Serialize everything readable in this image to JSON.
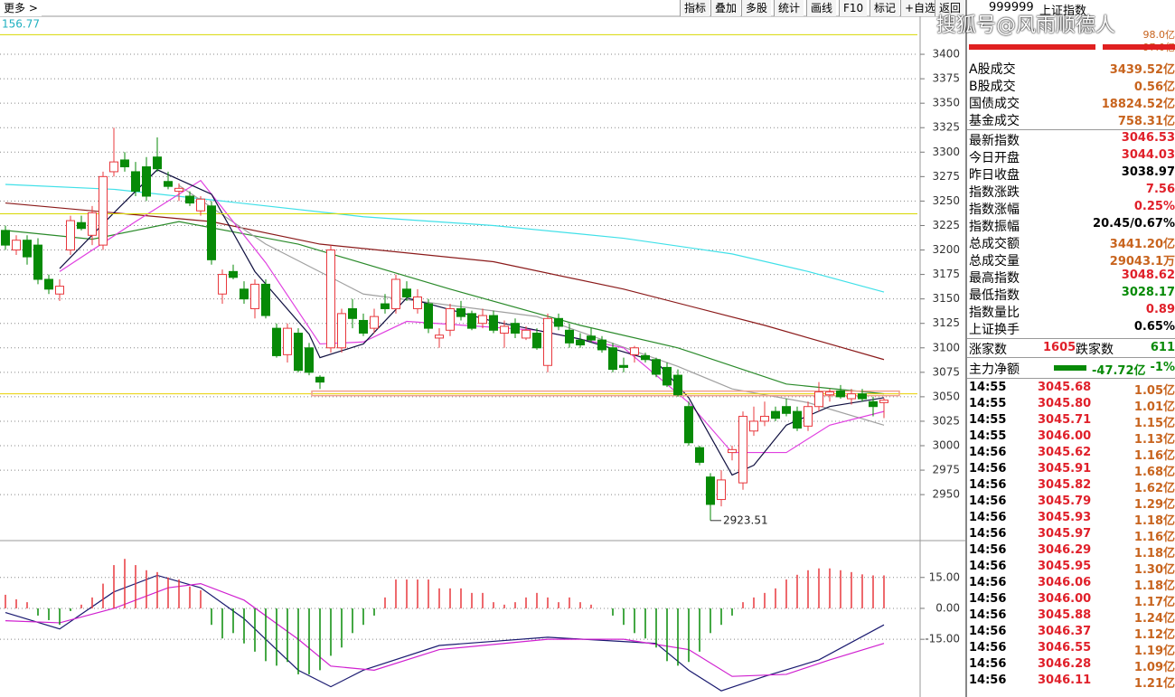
{
  "toolbar": {
    "more": "更多",
    "buttons": [
      "指标",
      "叠加",
      "多股",
      "统计",
      "画线",
      "F10",
      "标记",
      "+自选",
      "返回"
    ]
  },
  "chart_data": [
    {
      "type": "candlestick",
      "top_label": "156.77",
      "up_color": "#e8383d",
      "down_color": "#078a07",
      "ylim": [
        2903,
        3437
      ],
      "yticks": [
        2950,
        2975,
        3000,
        3025,
        3050,
        3075,
        3100,
        3125,
        3150,
        3175,
        3200,
        3225,
        3250,
        3275,
        3300,
        3325,
        3350,
        3375,
        3400
      ],
      "grid": true,
      "open": [
        3220,
        3200,
        3210,
        3205,
        3170,
        3155,
        3200,
        3228,
        3215,
        3205,
        3280,
        3292,
        3280,
        3285,
        3295,
        3270,
        3260,
        3255,
        3240,
        3245,
        3155,
        3178,
        3160,
        3140,
        3165,
        3120,
        3093,
        3115,
        3100,
        3070,
        3100,
        3100,
        3140,
        3128,
        3120,
        3145,
        3140,
        3160,
        3140,
        3145,
        3110,
        3118,
        3140,
        3135,
        3125,
        3133,
        3115,
        3125,
        3110,
        3115,
        3082,
        3130,
        3118,
        3108,
        3112,
        3108,
        3100,
        3082,
        3093,
        3092,
        3088,
        3080,
        3072,
        3040,
        2998,
        2968,
        2945,
        2993,
        2962,
        3015,
        3025,
        3035,
        3040,
        3035,
        3020,
        3040,
        3052,
        3056,
        3048,
        3053,
        3045,
        3044.03
      ],
      "high": [
        3225,
        3215,
        3215,
        3212,
        3175,
        3170,
        3235,
        3235,
        3245,
        3280,
        3325,
        3300,
        3290,
        3295,
        3315,
        3280,
        3268,
        3260,
        3255,
        3250,
        3180,
        3185,
        3168,
        3170,
        3170,
        3125,
        3125,
        3120,
        3105,
        3072,
        3205,
        3140,
        3150,
        3135,
        3140,
        3155,
        3175,
        3168,
        3160,
        3150,
        3120,
        3145,
        3148,
        3138,
        3140,
        3138,
        3128,
        3130,
        3122,
        3120,
        3135,
        3135,
        3125,
        3115,
        3120,
        3112,
        3105,
        3090,
        3102,
        3095,
        3090,
        3085,
        3078,
        3045,
        3000,
        2972,
        2975,
        3000,
        3035,
        3040,
        3045,
        3040,
        3048,
        3040,
        3045,
        3065,
        3058,
        3062,
        3058,
        3058,
        3050,
        3048.62
      ],
      "low": [
        3200,
        3195,
        3185,
        3165,
        3155,
        3148,
        3195,
        3220,
        3205,
        3200,
        3275,
        3280,
        3255,
        3250,
        3280,
        3262,
        3250,
        3245,
        3235,
        3185,
        3145,
        3170,
        3145,
        3130,
        3130,
        3090,
        3085,
        3075,
        3072,
        3058,
        3095,
        3095,
        3120,
        3112,
        3115,
        3135,
        3135,
        3148,
        3135,
        3115,
        3100,
        3112,
        3128,
        3118,
        3120,
        3115,
        3100,
        3110,
        3108,
        3098,
        3075,
        3118,
        3100,
        3100,
        3105,
        3095,
        3075,
        3075,
        3085,
        3085,
        3070,
        3060,
        3050,
        3000,
        2980,
        2923.51,
        2938,
        2985,
        2955,
        3010,
        3020,
        3025,
        3030,
        3015,
        3015,
        3035,
        3045,
        3048,
        3042,
        3045,
        3030,
        3028.17
      ],
      "close": [
        3205,
        3210,
        3193,
        3170,
        3160,
        3163,
        3230,
        3222,
        3238,
        3275,
        3290,
        3285,
        3260,
        3255,
        3283,
        3265,
        3263,
        3248,
        3252,
        3190,
        3175,
        3172,
        3150,
        3165,
        3133,
        3092,
        3120,
        3077,
        3075,
        3065,
        3200,
        3135,
        3130,
        3115,
        3132,
        3140,
        3170,
        3152,
        3152,
        3120,
        3113,
        3140,
        3132,
        3120,
        3133,
        3118,
        3122,
        3115,
        3118,
        3100,
        3130,
        3122,
        3105,
        3103,
        3108,
        3098,
        3078,
        3080,
        3100,
        3088,
        3073,
        3062,
        3052,
        3003,
        2983,
        2940,
        2965,
        2996,
        3030,
        3025,
        3030,
        3028,
        3033,
        3018,
        3040,
        3055,
        3055,
        3050,
        3053,
        3048,
        3040,
        3046.53
      ],
      "lines": [
        {
          "color": "#40e0e8",
          "x": [
            0,
            10,
            20,
            33,
            45,
            57,
            67,
            74,
            81
          ],
          "values": [
            3267,
            3262,
            3250,
            3234,
            3225,
            3212,
            3196,
            3178,
            3157
          ]
        },
        {
          "color": "#8b1a1a",
          "x": [
            0,
            19,
            29,
            45,
            57,
            70,
            81
          ],
          "values": [
            3248,
            3229,
            3206,
            3188,
            3160,
            3123,
            3088
          ]
        },
        {
          "color": "#2a8a2a",
          "x": [
            0,
            8,
            16,
            27,
            41,
            53,
            62,
            72,
            81
          ],
          "values": [
            3220,
            3211,
            3229,
            3206,
            3160,
            3123,
            3100,
            3063,
            3053
          ]
        },
        {
          "color": "#a0a0a0",
          "x": [
            16,
            24,
            33,
            49,
            62,
            67,
            74,
            81
          ],
          "values": [
            3266,
            3206,
            3155,
            3132,
            3081,
            3058,
            3044,
            3021
          ]
        },
        {
          "color": "#e040e0",
          "x": [
            5,
            12,
            18,
            24,
            29,
            33,
            37,
            49,
            57,
            63,
            67,
            72,
            76,
            81
          ],
          "values": [
            3178,
            3229,
            3271,
            3187,
            3104,
            3106,
            3127,
            3118,
            3100,
            3044,
            2993,
            2993,
            3021,
            3035
          ]
        },
        {
          "color": "#101040",
          "x": [
            5,
            10,
            14,
            19,
            23,
            28,
            29,
            33,
            37,
            45,
            53,
            60,
            63,
            67,
            69,
            72,
            76,
            81
          ],
          "values": [
            3181,
            3238,
            3282,
            3257,
            3178,
            3114,
            3090,
            3104,
            3151,
            3127,
            3109,
            3086,
            3049,
            2970,
            2980,
            3021,
            3040,
            3049
          ]
        }
      ],
      "hlines": [
        {
          "value": 3420,
          "color": "#d8d800"
        },
        {
          "value": 3237,
          "color": "#d8d800"
        },
        {
          "value": 3053,
          "color": "#e8d000"
        }
      ],
      "support_band": {
        "value": 3053,
        "color": "#f0a090"
      },
      "low_annotation": 2923.51
    },
    {
      "type": "macd",
      "ylim": [
        -43,
        32
      ],
      "yticks": [
        {
          "value": 15,
          "label": "15.00"
        },
        {
          "value": 0,
          "label": "0.00"
        },
        {
          "value": -15,
          "label": "-15.00"
        }
      ],
      "up_color": "#e8383d",
      "down_color": "#078a07",
      "values": [
        6.6,
        4.4,
        3,
        -3.5,
        -5.7,
        -8,
        -1.3,
        1.8,
        5.3,
        12,
        21,
        24,
        21,
        18.5,
        17.6,
        15,
        14,
        10.6,
        8.8,
        -8,
        -14.6,
        -12,
        -17,
        -21,
        -25.6,
        -27.8,
        -26,
        -32,
        -32,
        -30,
        -23,
        -19,
        -12,
        -8,
        -3.5,
        5.3,
        14,
        14,
        14,
        14,
        9.7,
        9.7,
        9.7,
        7.5,
        7.5,
        3,
        1.8,
        3,
        5.3,
        7.5,
        5.3,
        3,
        5.3,
        3,
        1.8,
        0,
        -3.5,
        -8,
        -12,
        -14.6,
        -19,
        -25.6,
        -27.8,
        -26,
        -21,
        -12,
        -8,
        -3.5,
        3,
        5.3,
        7.5,
        9.7,
        14,
        16.3,
        18.5,
        19.4,
        19.4,
        18.5,
        17.6,
        16.5,
        16,
        16
      ],
      "lines": [
        {
          "color": "#1a1a70",
          "x": [
            0,
            5,
            10,
            14,
            18,
            22,
            27,
            30,
            33,
            40,
            50,
            60,
            63,
            66,
            70,
            75,
            81
          ],
          "values": [
            -2,
            -10,
            8,
            16,
            10,
            -5,
            -30,
            -38,
            -30,
            -18,
            -14,
            -17,
            -30,
            -40,
            -33,
            -25,
            -8
          ]
        },
        {
          "color": "#d020d0",
          "x": [
            0,
            5,
            10,
            15,
            18,
            22,
            27,
            30,
            34,
            40,
            50,
            57,
            63,
            67,
            72,
            76,
            81
          ],
          "values": [
            -6,
            -7,
            0,
            10,
            12,
            4,
            -15,
            -28,
            -30,
            -20,
            -15,
            -15,
            -20,
            -33,
            -32,
            -25,
            -17
          ]
        }
      ]
    }
  ],
  "panel": {
    "code": "999999",
    "name": "上证指数",
    "watermark": "搜狐号@风雨顺德人",
    "bar_labels": [
      "98.0亿",
      "97.0亿"
    ],
    "turnover": [
      [
        "A股成交",
        "3439.52亿",
        "#c8641e"
      ],
      [
        "B股成交",
        "0.56亿",
        "#c8641e"
      ],
      [
        "国债成交",
        "18824.52亿",
        "#c8641e"
      ],
      [
        "基金成交",
        "758.31亿",
        "#c8641e"
      ]
    ],
    "stats": [
      [
        "最新指数",
        "3046.53",
        "#e0202a"
      ],
      [
        "今日开盘",
        "3044.03",
        "#e0202a"
      ],
      [
        "昨日收盘",
        "3038.97",
        "#000000"
      ],
      [
        "指数涨跌",
        "7.56",
        "#e0202a"
      ],
      [
        "指数涨幅",
        "0.25%",
        "#e0202a"
      ],
      [
        "指数振幅",
        "20.45/0.67%",
        "#000000"
      ],
      [
        "总成交额",
        "3441.20亿",
        "#c8641e"
      ],
      [
        "总成交量",
        "29043.1万",
        "#c8641e"
      ],
      [
        "最高指数",
        "3048.62",
        "#e0202a"
      ],
      [
        "最低指数",
        "3028.17",
        "#078a07"
      ],
      [
        "指数量比",
        "0.89",
        "#e0202a"
      ],
      [
        "上证换手",
        "0.65%",
        "#000000"
      ]
    ],
    "breadth": {
      "up_label": "涨家数",
      "up": "1605",
      "down_label": "跌家数",
      "down": "611"
    },
    "flow": {
      "label": "主力净额",
      "amount": "-47.72亿",
      "pct": "-1%"
    },
    "trades": [
      [
        "14:55",
        "3045.68",
        "1.05亿"
      ],
      [
        "14:55",
        "3045.80",
        "1.01亿"
      ],
      [
        "14:55",
        "3045.71",
        "1.15亿"
      ],
      [
        "14:55",
        "3046.00",
        "1.13亿"
      ],
      [
        "14:56",
        "3045.62",
        "1.16亿"
      ],
      [
        "14:56",
        "3045.91",
        "1.68亿"
      ],
      [
        "14:56",
        "3045.82",
        "1.62亿"
      ],
      [
        "14:56",
        "3045.79",
        "1.29亿"
      ],
      [
        "14:56",
        "3045.93",
        "1.18亿"
      ],
      [
        "14:56",
        "3045.97",
        "1.16亿"
      ],
      [
        "14:56",
        "3046.29",
        "1.18亿"
      ],
      [
        "14:56",
        "3045.95",
        "1.30亿"
      ],
      [
        "14:56",
        "3046.06",
        "1.18亿"
      ],
      [
        "14:56",
        "3046.00",
        "1.17亿"
      ],
      [
        "14:56",
        "3045.88",
        "1.24亿"
      ],
      [
        "14:56",
        "3046.37",
        "1.12亿"
      ],
      [
        "14:56",
        "3046.55",
        "1.19亿"
      ],
      [
        "14:56",
        "3046.28",
        "1.09亿"
      ],
      [
        "14:56",
        "3046.11",
        "1.21亿"
      ]
    ]
  }
}
